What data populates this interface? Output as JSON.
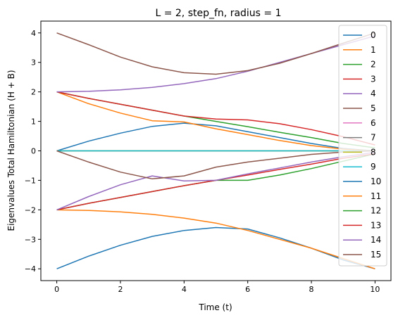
{
  "chart_data": {
    "type": "line",
    "title": "L = 2, step_fn, radius = 1",
    "xlabel": "Time (t)",
    "ylabel": "Eigenvalues Total Hamiltonian (H + B)",
    "xlim": [
      -0.5,
      10.5
    ],
    "ylim": [
      -4.4,
      4.4
    ],
    "xticks": [
      0,
      2,
      4,
      6,
      8,
      10
    ],
    "yticks": [
      -4,
      -3,
      -2,
      -1,
      0,
      1,
      2,
      3,
      4
    ],
    "grid": false,
    "legend_position": "top-right",
    "x": [
      0,
      1,
      2,
      3,
      4,
      5,
      6,
      7,
      8,
      9,
      10
    ],
    "series": [
      {
        "name": "0",
        "color": "#1f77b4",
        "values": [
          0,
          0.33,
          0.6,
          0.83,
          0.94,
          0.85,
          0.65,
          0.45,
          0.25,
          0.08,
          0
        ]
      },
      {
        "name": "1",
        "color": "#ff7f0e",
        "values": [
          2,
          1.6,
          1.28,
          1.02,
          0.98,
          0.75,
          0.55,
          0.35,
          0.18,
          0.06,
          0
        ]
      },
      {
        "name": "2",
        "color": "#2ca02c",
        "values": [
          2,
          1.78,
          1.58,
          1.38,
          1.18,
          1.0,
          0.82,
          0.63,
          0.45,
          0.25,
          0.1
        ]
      },
      {
        "name": "3",
        "color": "#d62728",
        "values": [
          2,
          1.78,
          1.58,
          1.38,
          1.18,
          1.08,
          1.05,
          0.92,
          0.72,
          0.48,
          0.2
        ]
      },
      {
        "name": "4",
        "color": "#9467bd",
        "values": [
          2,
          2.02,
          2.07,
          2.15,
          2.28,
          2.45,
          2.7,
          3.0,
          3.3,
          3.6,
          3.9
        ]
      },
      {
        "name": "5",
        "color": "#8c564b",
        "values": [
          4,
          3.6,
          3.18,
          2.85,
          2.65,
          2.6,
          2.72,
          2.97,
          3.3,
          3.65,
          4.0
        ]
      },
      {
        "name": "6",
        "color": "#e377c2",
        "values": [
          0,
          0,
          0,
          0,
          0,
          0,
          0,
          0,
          0,
          0,
          0
        ]
      },
      {
        "name": "7",
        "color": "#7f7f7f",
        "values": [
          0,
          0,
          0,
          0,
          0,
          0,
          0,
          0,
          0,
          0,
          0
        ]
      },
      {
        "name": "8",
        "color": "#bcbd22",
        "values": [
          0,
          0,
          0,
          0,
          0,
          0,
          0,
          0,
          0,
          0,
          0
        ]
      },
      {
        "name": "9",
        "color": "#17becf",
        "values": [
          0,
          0,
          0,
          0,
          0,
          0,
          0,
          0,
          0,
          0,
          0
        ]
      },
      {
        "name": "10",
        "color": "#1f77b4",
        "values": [
          -4,
          -3.57,
          -3.2,
          -2.9,
          -2.7,
          -2.6,
          -2.65,
          -2.95,
          -3.3,
          -3.7,
          -4.0
        ]
      },
      {
        "name": "11",
        "color": "#ff7f0e",
        "values": [
          -2,
          -2.02,
          -2.07,
          -2.15,
          -2.28,
          -2.45,
          -2.7,
          -3.0,
          -3.3,
          -3.65,
          -4.0
        ]
      },
      {
        "name": "12",
        "color": "#2ca02c",
        "values": [
          -2,
          -1.78,
          -1.58,
          -1.38,
          -1.18,
          -1.0,
          -1.0,
          -0.82,
          -0.6,
          -0.35,
          -0.1
        ]
      },
      {
        "name": "13",
        "color": "#d62728",
        "values": [
          -2,
          -1.78,
          -1.58,
          -1.38,
          -1.18,
          -1.0,
          -0.82,
          -0.63,
          -0.45,
          -0.25,
          -0.1
        ]
      },
      {
        "name": "14",
        "color": "#9467bd",
        "values": [
          -2,
          -1.55,
          -1.15,
          -0.85,
          -1.02,
          -1.0,
          -0.78,
          -0.58,
          -0.38,
          -0.2,
          -0.05
        ]
      },
      {
        "name": "15",
        "color": "#8c564b",
        "values": [
          0,
          -0.38,
          -0.72,
          -0.95,
          -0.85,
          -0.55,
          -0.38,
          -0.25,
          -0.12,
          -0.04,
          0
        ]
      }
    ]
  }
}
